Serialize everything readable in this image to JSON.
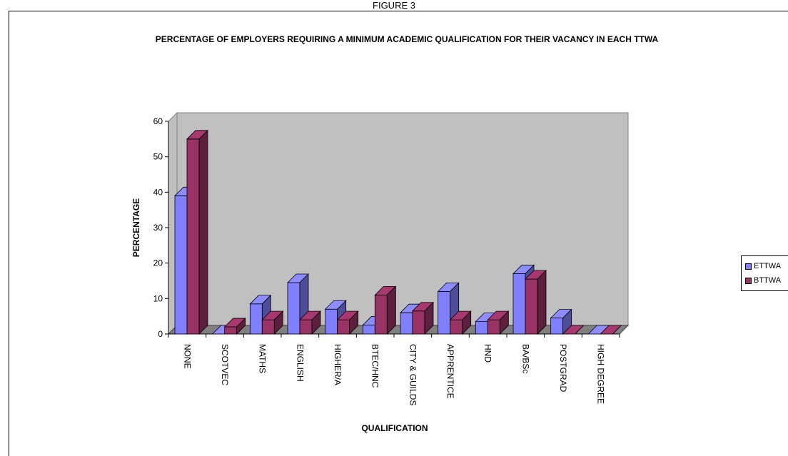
{
  "figure_caption": "FIGURE 3",
  "chart_data": {
    "type": "bar",
    "title": "PERCENTAGE OF EMPLOYERS  REQUIRING A MINIMUM ACADEMIC QUALIFICATION FOR THEIR VACANCY IN EACH TTWA",
    "xlabel": "QUALIFICATION",
    "ylabel": "PERCENTAGE",
    "ylim": [
      0,
      60
    ],
    "yticks": [
      "0",
      "10",
      "20",
      "30",
      "40",
      "50",
      "60"
    ],
    "categories": [
      "NONE",
      "SCOTVEC",
      "MATHS",
      "ENGLISH",
      "HIGHER/A",
      "BTEC/HNC",
      "CITY & GUILDS",
      "APPRENTICE",
      "HND",
      "BA/BSc",
      "POSTGRAD",
      "HIGH DEGREE"
    ],
    "series": [
      {
        "name": "ETTWA",
        "color": "#8080ff",
        "values": [
          39,
          0,
          8.5,
          14.5,
          7,
          2.5,
          6,
          12,
          3.5,
          17,
          4.5,
          0
        ]
      },
      {
        "name": "BTTWA",
        "color": "#993366",
        "values": [
          55,
          2,
          4,
          4,
          4,
          11,
          6.5,
          4,
          4,
          15.5,
          0,
          0
        ]
      }
    ],
    "grid": false,
    "legend_position": "right"
  }
}
